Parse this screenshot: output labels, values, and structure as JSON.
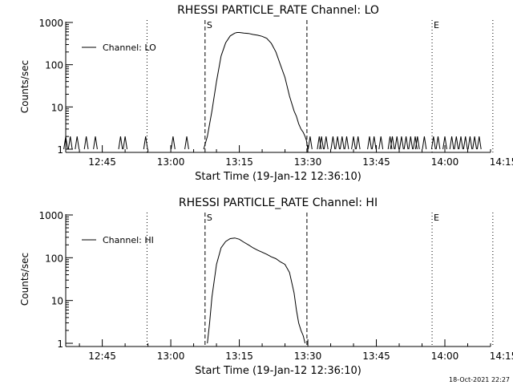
{
  "chart_data": [
    {
      "type": "line",
      "title": "RHESSI PARTICLE_RATE Channel: LO",
      "xlabel": "Start Time (19-Jan-12 12:36:10)",
      "ylabel": "Counts/sec",
      "yscale": "log",
      "ylim": [
        1,
        1000
      ],
      "xlim_minutes": [
        -53,
        40
      ],
      "x_ticks": [
        {
          "minute": -45,
          "label": "12:45"
        },
        {
          "minute": -30,
          "label": "13:00"
        },
        {
          "minute": -15,
          "label": "13:15"
        },
        {
          "minute": 0,
          "label": "13:30"
        },
        {
          "minute": 15,
          "label": "13:45"
        },
        {
          "minute": 30,
          "label": "14:00"
        },
        {
          "minute": 45,
          "label": "14:15"
        }
      ],
      "y_ticks": [
        {
          "value": 1,
          "label": "1"
        },
        {
          "value": 10,
          "label": "10"
        },
        {
          "value": 100,
          "label": "100"
        },
        {
          "value": 1000,
          "label": "1000"
        }
      ],
      "legend": {
        "label": "Channel: LO",
        "position": "top-left"
      },
      "markers": {
        "start_label": "S",
        "start_minute": -22.5,
        "end_label": "E",
        "end_minute": 27.2,
        "dashed_minutes": [
          -22.5,
          -0.2
        ],
        "dotted_minutes": [
          -35.2,
          27.2,
          40.5
        ]
      },
      "series": [
        {
          "name": "Channel: LO",
          "main_x": [
            -22.8,
            -22.0,
            -21.0,
            -20.0,
            -19.0,
            -18.0,
            -17.0,
            -16.0,
            -15.5,
            -15.0,
            -14.0,
            -13.0,
            -12.0,
            -11.0,
            -10.0,
            -9.0,
            -8.0,
            -7.0,
            -6.0,
            -5.0,
            -4.0,
            -3.0,
            -2.5,
            -2.0,
            -1.5,
            -1.0,
            -0.6,
            -0.3,
            0.0
          ],
          "main_y": [
            1,
            2,
            8,
            40,
            160,
            330,
            480,
            560,
            580,
            580,
            560,
            550,
            520,
            500,
            470,
            420,
            320,
            200,
            100,
            50,
            18,
            8,
            6,
            4,
            3,
            2.5,
            2,
            1.6,
            1
          ],
          "blips": [
            -53.0,
            -52.0,
            -50.5,
            -48.5,
            -46.5,
            -41.0,
            -40.0,
            -35.5,
            -29.5,
            -26.5,
            0.5,
            2.5,
            3.0,
            4.0,
            5.5,
            6.5,
            7.5,
            8.5,
            10.0,
            11.0,
            13.5,
            14.5,
            16.0,
            18.0,
            18.5,
            19.5,
            20.5,
            21.5,
            22.5,
            23.5,
            24.0,
            25.5,
            27.5,
            28.5,
            30.0,
            31.5,
            32.5,
            33.5,
            34.5,
            35.5,
            36.5,
            37.5
          ]
        }
      ]
    },
    {
      "type": "line",
      "title": "RHESSI PARTICLE_RATE Channel: HI",
      "xlabel": "Start Time (19-Jan-12 12:36:10)",
      "ylabel": "Counts/sec",
      "yscale": "log",
      "ylim": [
        1,
        1000
      ],
      "xlim_minutes": [
        -53,
        40
      ],
      "x_ticks": [
        {
          "minute": -45,
          "label": "12:45"
        },
        {
          "minute": -30,
          "label": "13:00"
        },
        {
          "minute": -15,
          "label": "13:15"
        },
        {
          "minute": 0,
          "label": "13:30"
        },
        {
          "minute": 15,
          "label": "13:45"
        },
        {
          "minute": 30,
          "label": "14:00"
        },
        {
          "minute": 45,
          "label": "14:15"
        }
      ],
      "y_ticks": [
        {
          "value": 1,
          "label": "1"
        },
        {
          "value": 10,
          "label": "10"
        },
        {
          "value": 100,
          "label": "100"
        },
        {
          "value": 1000,
          "label": "1000"
        }
      ],
      "legend": {
        "label": "Channel: HI",
        "position": "top-left"
      },
      "markers": {
        "start_label": "S",
        "start_minute": -22.5,
        "end_label": "E",
        "end_minute": 27.2,
        "dashed_minutes": [
          -22.5,
          -0.2
        ],
        "dotted_minutes": [
          -35.2,
          27.2,
          40.5
        ]
      },
      "series": [
        {
          "name": "Channel: HI",
          "main_x": [
            -22.0,
            -21.5,
            -21.0,
            -20.0,
            -19.0,
            -18.0,
            -17.0,
            -16.0,
            -15.0,
            -14.0,
            -13.0,
            -12.0,
            -11.0,
            -10.0,
            -9.0,
            -8.0,
            -7.0,
            -6.0,
            -5.0,
            -4.0,
            -3.0,
            -2.5,
            -2.0,
            -1.5,
            -1.0,
            -0.6
          ],
          "main_y": [
            1,
            3,
            12,
            70,
            170,
            240,
            280,
            290,
            270,
            230,
            200,
            170,
            150,
            135,
            120,
            105,
            95,
            80,
            70,
            45,
            15,
            6,
            3,
            2,
            1.5,
            1
          ],
          "blips": []
        }
      ]
    }
  ],
  "footer": {
    "timestamp": "18-Oct-2021 22:27"
  }
}
